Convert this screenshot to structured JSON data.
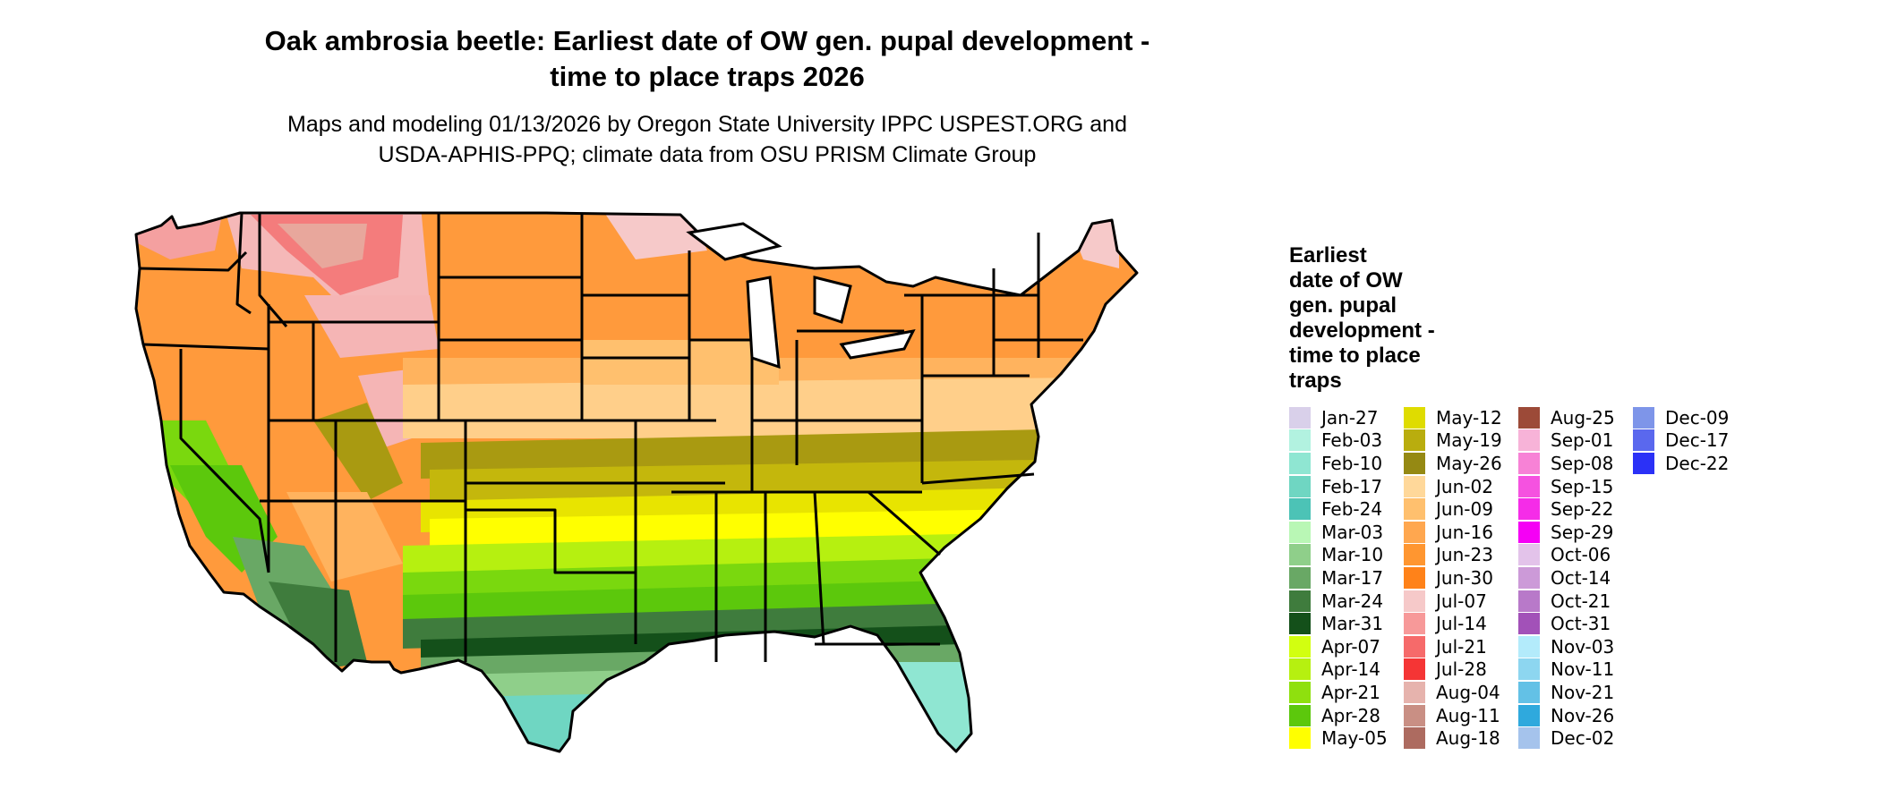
{
  "title": {
    "line1": "Oak ambrosia beetle: Earliest date of OW gen. pupal development -",
    "line2": "time to place traps 2026"
  },
  "subtitle": {
    "line1": "Maps and modeling 01/13/2026 by Oregon State University IPPC USPEST.ORG and",
    "line2": "USDA-APHIS-PPQ; climate data from OSU PRISM Climate Group"
  },
  "legend": {
    "title_lines": [
      "Earliest",
      "date of OW",
      "gen. pupal",
      "development -",
      "time to place",
      "traps"
    ],
    "items": [
      {
        "label": "Jan-27",
        "color": "#d9d0ea"
      },
      {
        "label": "Feb-03",
        "color": "#b2f2e0"
      },
      {
        "label": "Feb-10",
        "color": "#8fe6d2"
      },
      {
        "label": "Feb-17",
        "color": "#6fd6c2"
      },
      {
        "label": "Feb-24",
        "color": "#4cc3b6"
      },
      {
        "label": "Mar-03",
        "color": "#b9f7b5"
      },
      {
        "label": "Mar-10",
        "color": "#8fcf8a"
      },
      {
        "label": "Mar-17",
        "color": "#69a865"
      },
      {
        "label": "Mar-24",
        "color": "#3f7c3d"
      },
      {
        "label": "Mar-31",
        "color": "#14501a"
      },
      {
        "label": "Apr-07",
        "color": "#d2ff10"
      },
      {
        "label": "Apr-14",
        "color": "#b6f010"
      },
      {
        "label": "Apr-21",
        "color": "#8fe00e"
      },
      {
        "label": "Apr-28",
        "color": "#5cc80c"
      },
      {
        "label": "May-05",
        "color": "#ffff00"
      },
      {
        "label": "May-12",
        "color": "#dfdc00"
      },
      {
        "label": "May-19",
        "color": "#b9ad0e"
      },
      {
        "label": "May-26",
        "color": "#958913"
      },
      {
        "label": "Jun-02",
        "color": "#ffd89a"
      },
      {
        "label": "Jun-09",
        "color": "#ffc06e"
      },
      {
        "label": "Jun-16",
        "color": "#ffa74f"
      },
      {
        "label": "Jun-23",
        "color": "#ff9630"
      },
      {
        "label": "Jun-30",
        "color": "#ff8219"
      },
      {
        "label": "Jul-07",
        "color": "#f6c9c9"
      },
      {
        "label": "Jul-14",
        "color": "#f79999"
      },
      {
        "label": "Jul-21",
        "color": "#f66a6a"
      },
      {
        "label": "Jul-28",
        "color": "#f53535"
      },
      {
        "label": "Aug-04",
        "color": "#e6b3ad"
      },
      {
        "label": "Aug-11",
        "color": "#c98f84"
      },
      {
        "label": "Aug-18",
        "color": "#ad6b60"
      },
      {
        "label": "Aug-25",
        "color": "#9c4a38"
      },
      {
        "label": "Sep-01",
        "color": "#f7b3d8"
      },
      {
        "label": "Sep-08",
        "color": "#f782d6"
      },
      {
        "label": "Sep-15",
        "color": "#f552e0"
      },
      {
        "label": "Sep-22",
        "color": "#f52ce8"
      },
      {
        "label": "Sep-29",
        "color": "#f500f5"
      },
      {
        "label": "Oct-06",
        "color": "#e3c3ea"
      },
      {
        "label": "Oct-14",
        "color": "#cc9ad8"
      },
      {
        "label": "Oct-21",
        "color": "#b879c9"
      },
      {
        "label": "Oct-31",
        "color": "#a251b8"
      },
      {
        "label": "Nov-03",
        "color": "#b3ebfb"
      },
      {
        "label": "Nov-11",
        "color": "#8dd6f0"
      },
      {
        "label": "Nov-21",
        "color": "#63c1e6"
      },
      {
        "label": "Nov-26",
        "color": "#2fa9dd"
      },
      {
        "label": "Dec-02",
        "color": "#a5c3ec"
      },
      {
        "label": "Dec-09",
        "color": "#7e95e9"
      },
      {
        "label": "Dec-17",
        "color": "#5a68ee"
      },
      {
        "label": "Dec-22",
        "color": "#2b31f7"
      }
    ]
  }
}
